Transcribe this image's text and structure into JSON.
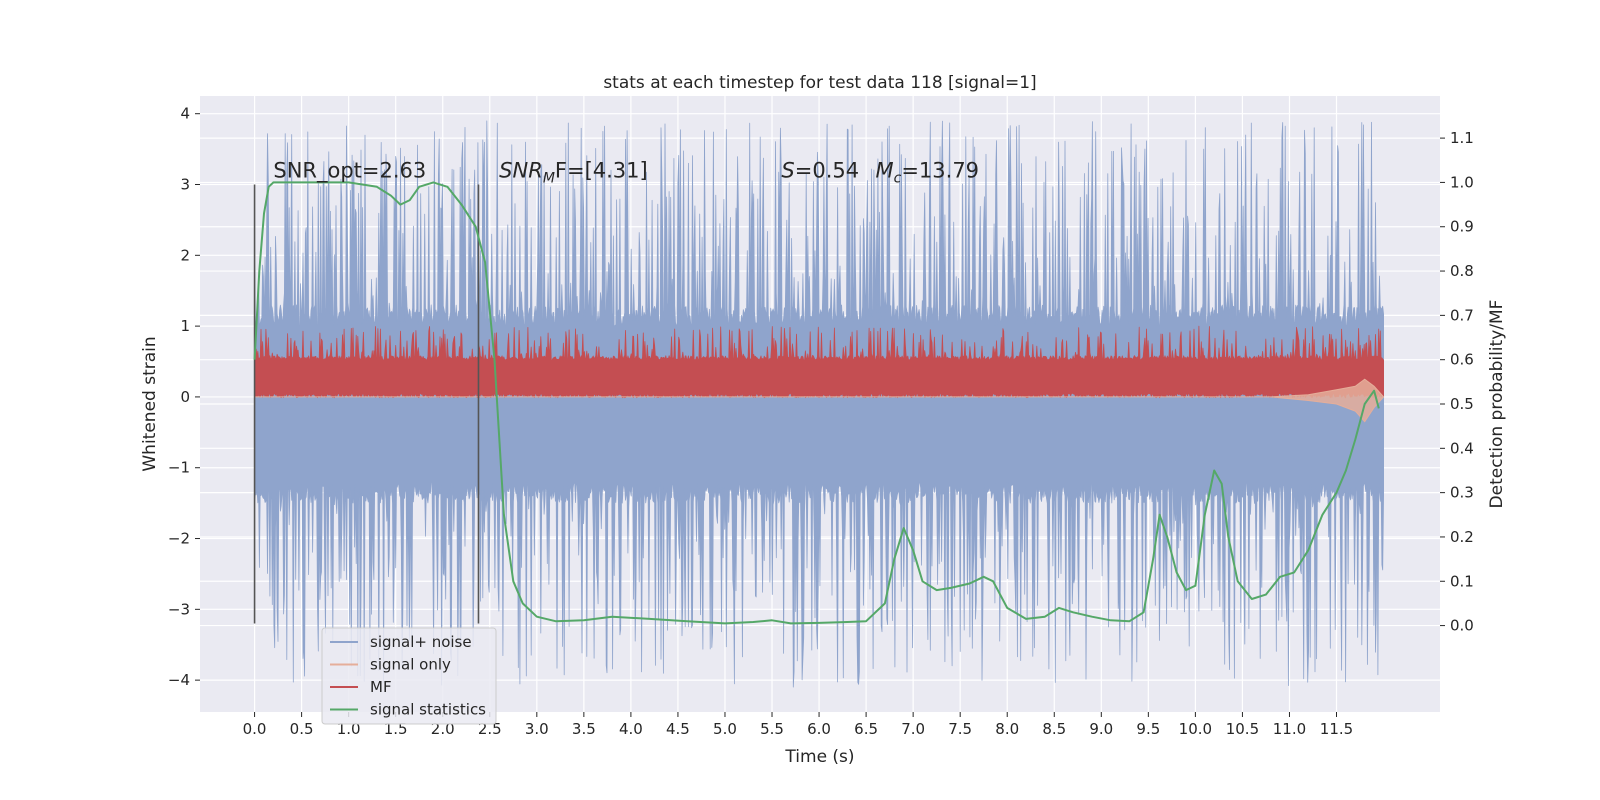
{
  "chart_data": {
    "type": "line",
    "title": "stats at each timestep for test data 118 [signal=1]",
    "xlabel": "Time (s)",
    "ylabel": "Whitened strain",
    "y2label": "Detection probability/MF",
    "xlim": [
      -0.58,
      12.6
    ],
    "ylim": [
      -4.45,
      4.25
    ],
    "y2lim": [
      -0.195,
      1.195
    ],
    "xticks": [
      0.0,
      0.5,
      1.0,
      1.5,
      2.0,
      2.5,
      3.0,
      3.5,
      4.0,
      4.5,
      5.0,
      5.5,
      6.0,
      6.5,
      7.0,
      7.5,
      8.0,
      8.5,
      9.0,
      9.5,
      10.0,
      10.5,
      11.0,
      11.5
    ],
    "xtick_labels": [
      "0.0",
      "0.5",
      "1.0",
      "1.5",
      "2.0",
      "2.5",
      "3.0",
      "3.5",
      "4.0",
      "4.5",
      "5.0",
      "5.5",
      "6.0",
      "6.5",
      "7.0",
      "7.5",
      "8.0",
      "8.5",
      "9.0",
      "9.5",
      "10.0",
      "10.5",
      "11.0",
      "11.5"
    ],
    "yticks": [
      -4,
      -3,
      -2,
      -1,
      0,
      1,
      2,
      3,
      4
    ],
    "ytick_labels": [
      "−4",
      "−3",
      "−2",
      "−1",
      "0",
      "1",
      "2",
      "3",
      "4"
    ],
    "y2ticks": [
      0.0,
      0.1,
      0.2,
      0.3,
      0.4,
      0.5,
      0.6,
      0.7,
      0.8,
      0.9,
      1.0,
      1.1
    ],
    "y2tick_labels": [
      "0.0",
      "0.1",
      "0.2",
      "0.3",
      "0.4",
      "0.5",
      "0.6",
      "0.7",
      "0.8",
      "0.9",
      "1.0",
      "1.1"
    ],
    "grid": true,
    "legend_position": "lower-left",
    "annotations": [
      {
        "text": "SNR_opt=2.63",
        "x": 0.2,
        "y": 3.1
      },
      {
        "text": "SNR",
        "sub": "M",
        "tail": "F=[4.31]",
        "x": 2.6,
        "y": 3.1
      },
      {
        "text": "S=0.54",
        "x": 5.6,
        "y": 3.1
      },
      {
        "text": "M",
        "sub": "c",
        "tail": "=13.79",
        "x": 6.6,
        "y": 3.1
      }
    ],
    "vlines": [
      {
        "x": 0.0,
        "ymin": -3.2,
        "ymax": 3.0
      },
      {
        "x": 2.38,
        "ymin": -3.2,
        "ymax": 3.0
      }
    ],
    "series": [
      {
        "name": "signal+ noise",
        "color": "#8fa4cc",
        "axis": "left",
        "envelope": {
          "x": [
            0.0,
            12.0
          ],
          "lower": [
            -1.35,
            -1.35
          ],
          "upper": [
            1.15,
            1.15
          ],
          "spike_min": -4.1,
          "spike_max": 3.9
        }
      },
      {
        "name": "signal only",
        "color": "#e5ae9a",
        "axis": "left",
        "x": [
          0.0,
          10.8,
          11.2,
          11.5,
          11.7,
          11.8,
          11.9,
          12.0
        ],
        "lower": [
          0.0,
          0.0,
          -0.05,
          -0.1,
          -0.2,
          -0.35,
          -0.15,
          0.0
        ],
        "upper": [
          0.0,
          0.0,
          0.03,
          0.1,
          0.15,
          0.25,
          0.15,
          0.0
        ]
      },
      {
        "name": "MF",
        "color": "#c44e52",
        "axis": "left",
        "envelope": {
          "x": [
            0.0,
            12.0
          ],
          "lower": [
            0.02,
            0.02
          ],
          "upper": [
            0.55,
            0.55
          ],
          "spike_min": 0.0,
          "spike_max": 1.0
        }
      },
      {
        "name": "signal statistics",
        "color": "#55a868",
        "axis": "right",
        "x": [
          0.0,
          0.05,
          0.1,
          0.15,
          0.2,
          0.5,
          1.0,
          1.3,
          1.45,
          1.55,
          1.65,
          1.75,
          1.9,
          2.05,
          2.2,
          2.35,
          2.45,
          2.55,
          2.65,
          2.75,
          2.85,
          3.0,
          3.2,
          3.5,
          3.8,
          4.2,
          4.6,
          5.0,
          5.3,
          5.5,
          5.7,
          6.0,
          6.3,
          6.5,
          6.7,
          6.8,
          6.9,
          7.0,
          7.1,
          7.25,
          7.4,
          7.6,
          7.75,
          7.85,
          8.0,
          8.2,
          8.4,
          8.55,
          8.7,
          8.9,
          9.1,
          9.3,
          9.45,
          9.55,
          9.62,
          9.7,
          9.8,
          9.9,
          10.0,
          10.1,
          10.2,
          10.28,
          10.35,
          10.45,
          10.6,
          10.75,
          10.9,
          11.05,
          11.2,
          11.35,
          11.5,
          11.6,
          11.7,
          11.8,
          11.9,
          11.95
        ],
        "y": [
          0.6,
          0.8,
          0.93,
          0.99,
          1.0,
          1.0,
          1.0,
          0.99,
          0.97,
          0.95,
          0.96,
          0.99,
          1.0,
          0.99,
          0.95,
          0.9,
          0.82,
          0.6,
          0.25,
          0.1,
          0.05,
          0.02,
          0.01,
          0.012,
          0.02,
          0.015,
          0.01,
          0.005,
          0.008,
          0.012,
          0.005,
          0.006,
          0.008,
          0.01,
          0.05,
          0.15,
          0.22,
          0.17,
          0.1,
          0.08,
          0.085,
          0.095,
          0.11,
          0.1,
          0.04,
          0.015,
          0.02,
          0.04,
          0.03,
          0.02,
          0.012,
          0.01,
          0.03,
          0.15,
          0.25,
          0.2,
          0.12,
          0.08,
          0.09,
          0.25,
          0.35,
          0.32,
          0.2,
          0.1,
          0.06,
          0.07,
          0.11,
          0.12,
          0.17,
          0.25,
          0.3,
          0.35,
          0.42,
          0.5,
          0.53,
          0.49
        ]
      }
    ]
  }
}
